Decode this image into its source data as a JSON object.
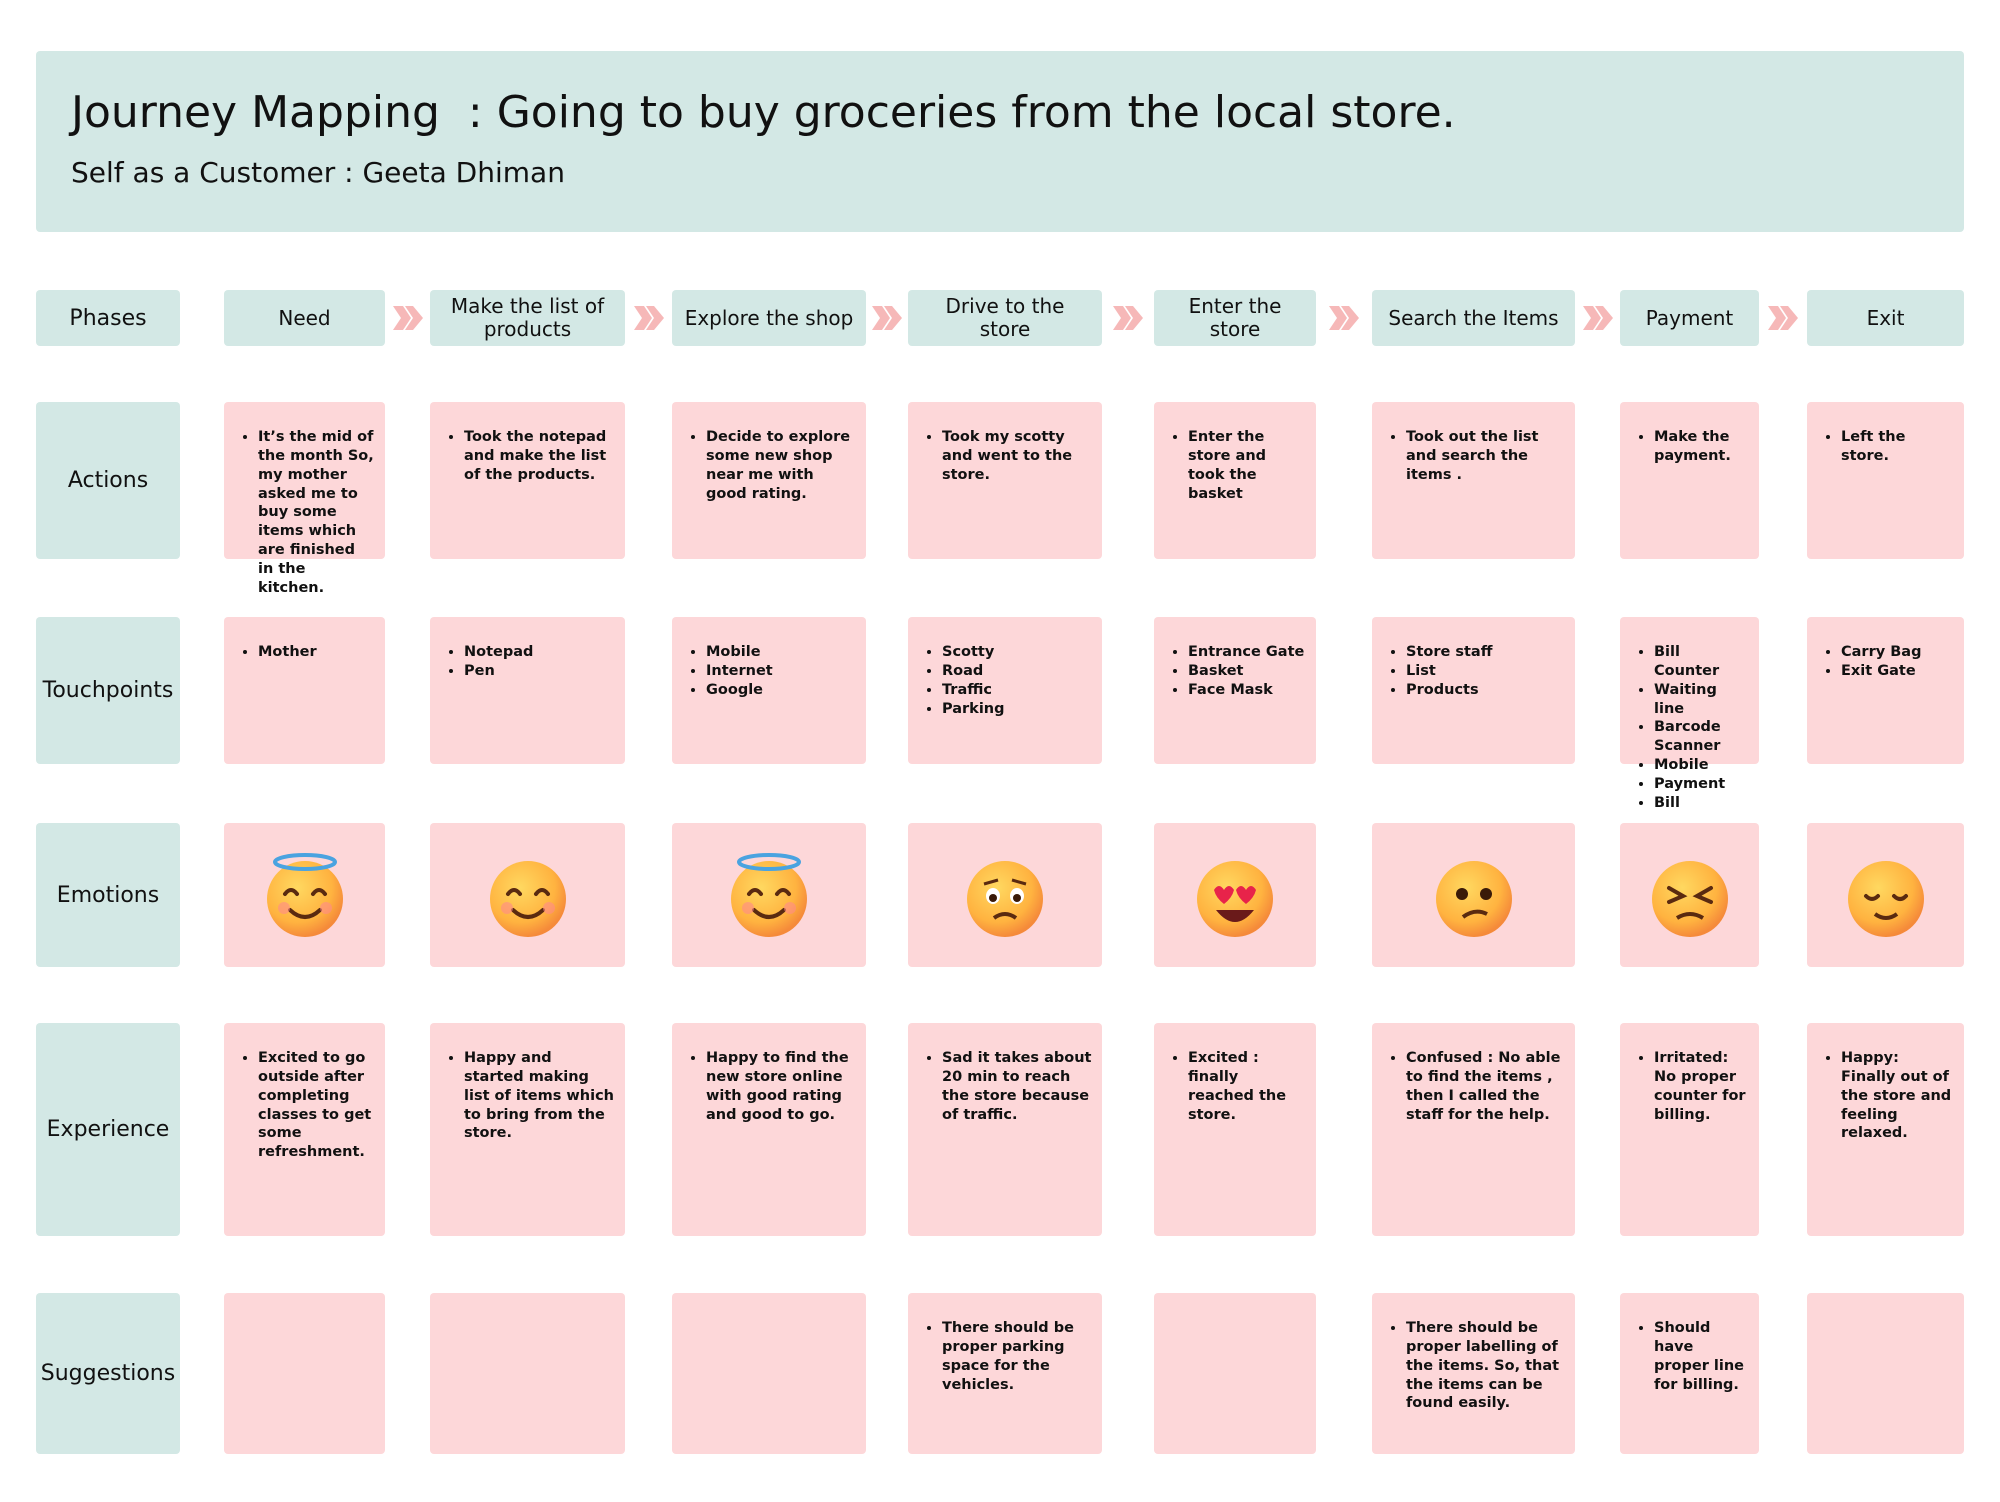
{
  "header": {
    "title": "Journey Mapping  : Going to buy groceries from the local store.",
    "subtitle": "Self as a Customer : Geeta Dhiman"
  },
  "row_labels": [
    "Phases",
    "Actions",
    "Touchpoints",
    "Emotions",
    "Experience",
    "Suggestions"
  ],
  "phases": [
    {
      "name": "Need",
      "actions": [
        "It’s the mid of the month So, my mother asked me to buy some items which are finished in the kitchen."
      ],
      "touchpoints": [
        "Mother"
      ],
      "experience": [
        "Excited to go outside after completing classes to get some refreshment."
      ],
      "suggestions": []
    },
    {
      "name": "Make the list of products",
      "actions": [
        "Took the notepad and make the list of the products."
      ],
      "touchpoints": [
        "Notepad",
        "Pen"
      ],
      "experience": [
        "Happy and started making list of items which to bring from the store."
      ],
      "suggestions": []
    },
    {
      "name": "Explore the shop",
      "actions": [
        "Decide to explore some new shop near me with good rating."
      ],
      "touchpoints": [
        "Mobile",
        "Internet",
        "Google"
      ],
      "experience": [
        "Happy to find the new store online with good rating and good to go."
      ],
      "suggestions": []
    },
    {
      "name": "Drive to the store",
      "actions": [
        "Took my scotty and went to the store."
      ],
      "touchpoints": [
        "Scotty",
        "Road",
        "Traffic",
        "Parking"
      ],
      "experience": [
        "Sad it takes about 20 min to reach the store because of traffic."
      ],
      "suggestions": [
        "There should be proper parking space for the vehicles."
      ]
    },
    {
      "name": "Enter the store",
      "actions": [
        "Enter the store and took the basket"
      ],
      "touchpoints": [
        "Entrance Gate",
        "Basket",
        "Face Mask"
      ],
      "experience": [
        "Excited : finally reached the store."
      ],
      "suggestions": []
    },
    {
      "name": "Search the Items",
      "actions": [
        "Took out the list and search the items ."
      ],
      "touchpoints": [
        "Store staff",
        "List",
        "Products"
      ],
      "experience": [
        "Confused : No able to find the items , then I called the staff for the help."
      ],
      "suggestions": [
        "There should be proper labelling of the items. So, that the items can be found easily."
      ]
    },
    {
      "name": "Payment",
      "actions": [
        "Make the payment."
      ],
      "touchpoints": [
        "Bill Counter",
        "Waiting line",
        "Barcode Scanner",
        "Mobile",
        "Payment",
        "Bill"
      ],
      "experience": [
        "Irritated: No proper counter for billing."
      ],
      "suggestions": [
        "Should have proper line for billing."
      ]
    },
    {
      "name": "Exit",
      "actions": [
        "Left the store."
      ],
      "touchpoints": [
        "Carry Bag",
        "Exit Gate"
      ],
      "experience": [
        "Happy: Finally out of the store and feeling relaxed."
      ],
      "suggestions": []
    }
  ]
}
